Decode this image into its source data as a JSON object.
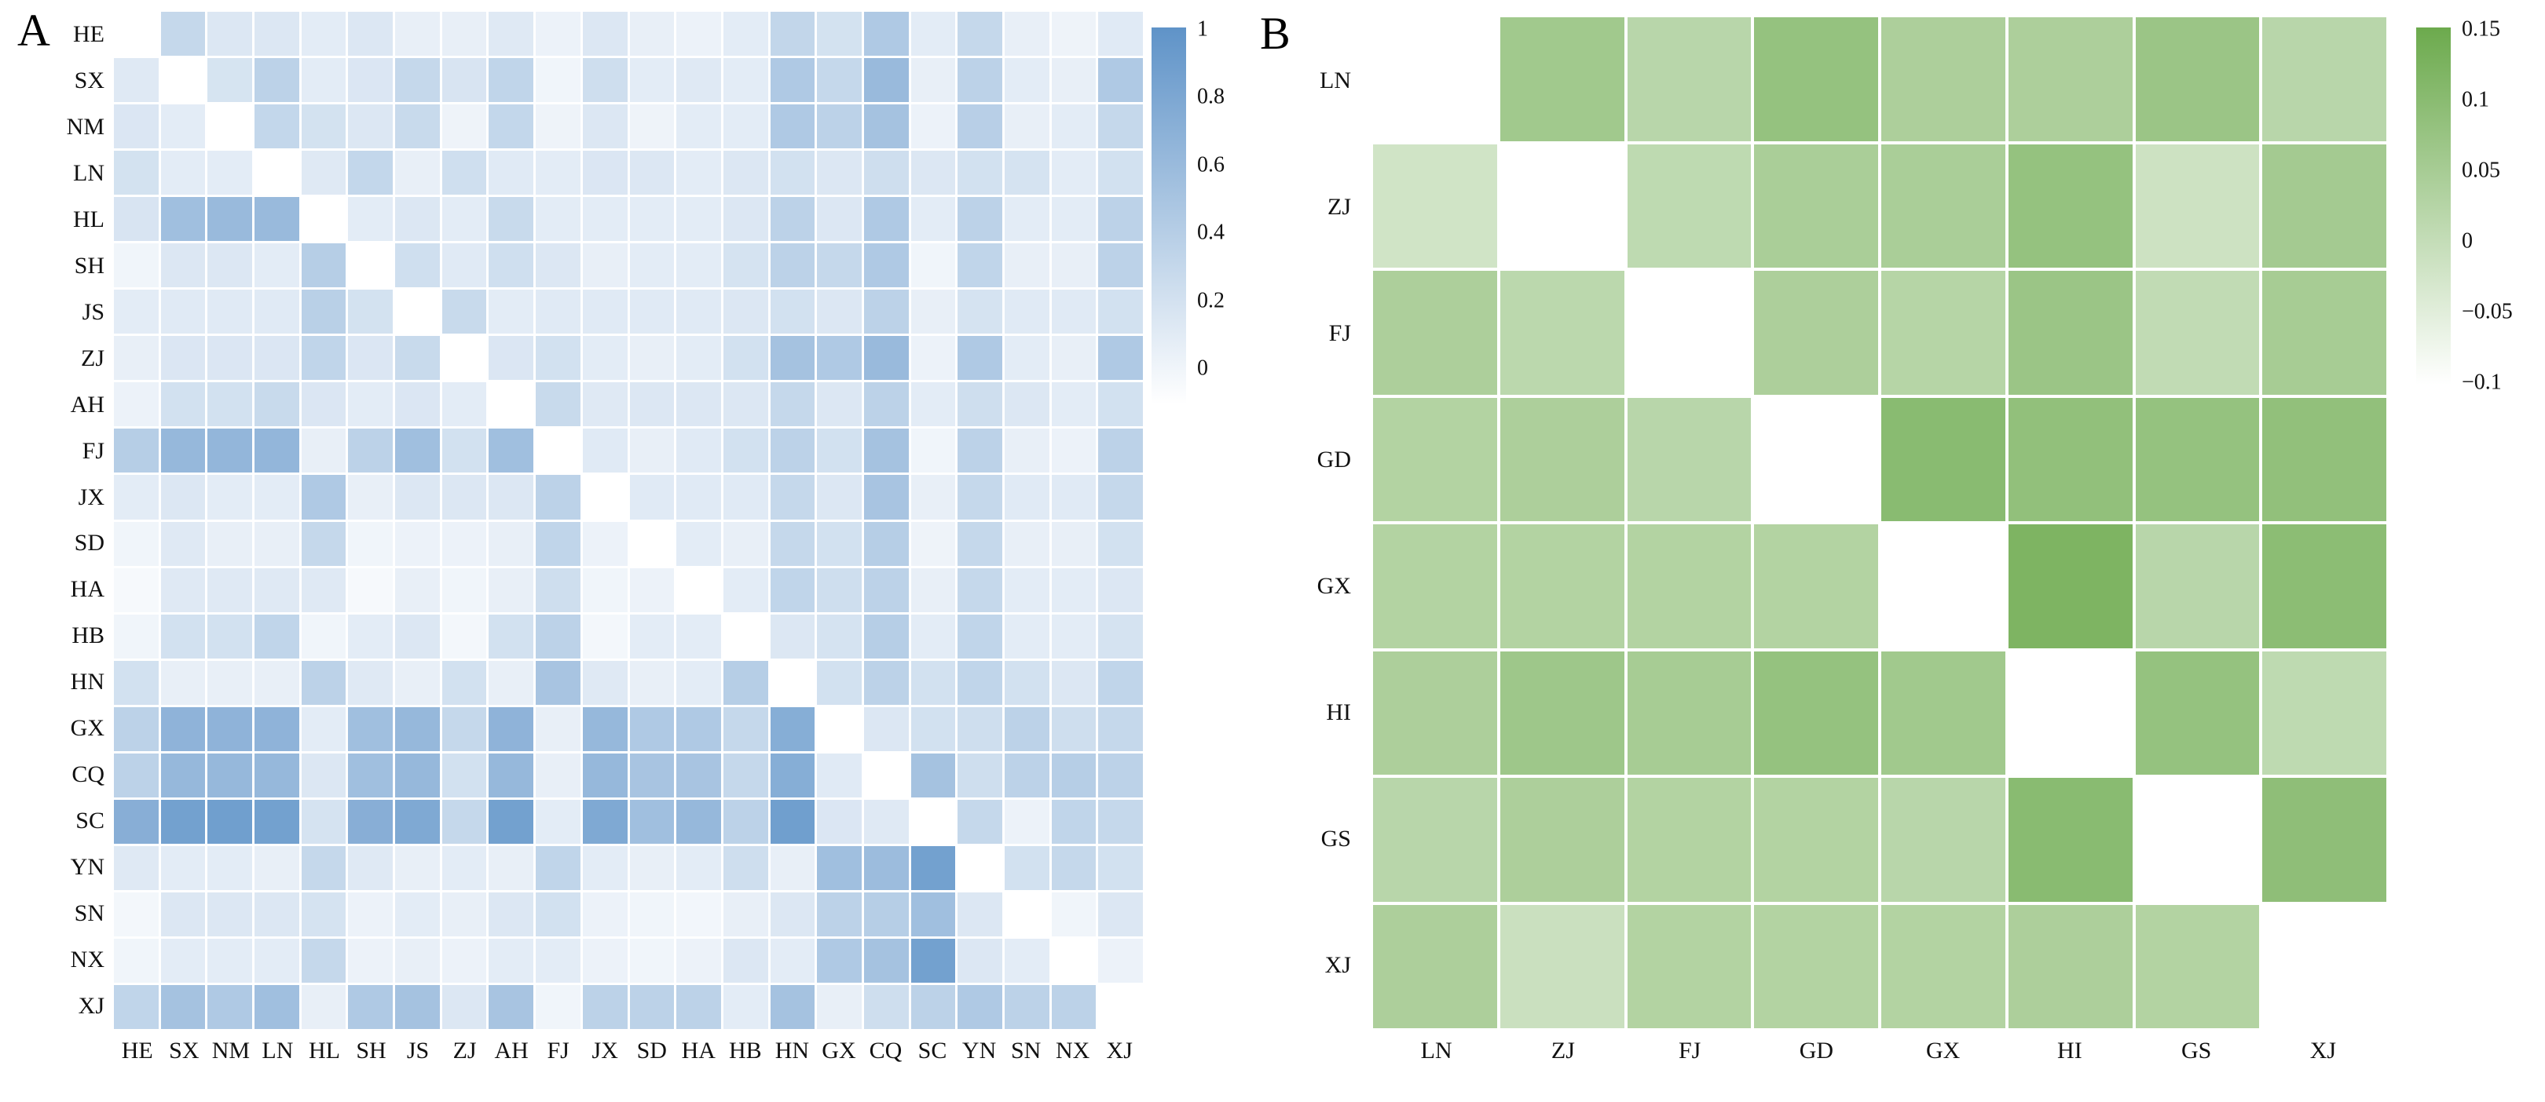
{
  "chart_data": [
    {
      "type": "heatmap",
      "panel_label": "A",
      "rows": [
        "HE",
        "SX",
        "NM",
        "LN",
        "HL",
        "SH",
        "JS",
        "ZJ",
        "AH",
        "FJ",
        "JX",
        "SD",
        "HA",
        "HB",
        "HN",
        "GX",
        "CQ",
        "SC",
        "YN",
        "SN",
        "NX",
        "XJ"
      ],
      "cols": [
        "HE",
        "SX",
        "NM",
        "LN",
        "HL",
        "SH",
        "JS",
        "ZJ",
        "AH",
        "FJ",
        "JX",
        "SD",
        "HA",
        "HB",
        "HN",
        "GX",
        "CQ",
        "SC",
        "YN",
        "SN",
        "NX",
        "XJ"
      ],
      "diagonal": "masked-white",
      "colorbar": {
        "position": "right",
        "vmin": -0.1,
        "vmax": 1.0,
        "max_color": "#5f93c8",
        "min_color": "#ffffff",
        "tick_values": [
          1,
          0.8,
          0.6,
          0.4,
          0.2,
          0
        ],
        "tick_labels": [
          "1",
          "0.8",
          "0.6",
          "0.4",
          "0.2",
          "0"
        ]
      },
      "values": [
        [
          null,
          0.3,
          0.14,
          0.14,
          0.09,
          0.14,
          0.06,
          0.06,
          0.12,
          0.03,
          0.14,
          0.06,
          0.03,
          0.09,
          0.32,
          0.2,
          0.45,
          0.09,
          0.3,
          0.06,
          0.02,
          0.11
        ],
        [
          0.12,
          null,
          0.18,
          0.36,
          0.09,
          0.15,
          0.3,
          0.17,
          0.33,
          0.0,
          0.24,
          0.09,
          0.12,
          0.09,
          0.45,
          0.3,
          0.6,
          0.06,
          0.36,
          0.09,
          0.06,
          0.45
        ],
        [
          0.15,
          0.09,
          null,
          0.31,
          0.2,
          0.14,
          0.28,
          0.02,
          0.31,
          0.02,
          0.14,
          0.02,
          0.09,
          0.09,
          0.45,
          0.36,
          0.52,
          0.03,
          0.39,
          0.06,
          0.09,
          0.3
        ],
        [
          0.2,
          0.09,
          0.09,
          null,
          0.12,
          0.31,
          0.06,
          0.23,
          0.11,
          0.09,
          0.15,
          0.14,
          0.09,
          0.14,
          0.21,
          0.14,
          0.24,
          0.14,
          0.21,
          0.19,
          0.09,
          0.21
        ],
        [
          0.17,
          0.55,
          0.6,
          0.6,
          null,
          0.09,
          0.14,
          0.09,
          0.28,
          0.09,
          0.09,
          0.09,
          0.09,
          0.14,
          0.36,
          0.14,
          0.45,
          0.09,
          0.36,
          0.09,
          0.09,
          0.36
        ],
        [
          0.0,
          0.14,
          0.14,
          0.09,
          0.4,
          null,
          0.23,
          0.11,
          0.23,
          0.14,
          0.06,
          0.09,
          0.09,
          0.19,
          0.36,
          0.3,
          0.45,
          0.0,
          0.33,
          0.06,
          0.06,
          0.36
        ],
        [
          0.09,
          0.11,
          0.11,
          0.11,
          0.38,
          0.2,
          null,
          0.28,
          0.09,
          0.11,
          0.11,
          0.11,
          0.11,
          0.14,
          0.21,
          0.14,
          0.36,
          0.06,
          0.19,
          0.11,
          0.11,
          0.21
        ],
        [
          0.06,
          0.15,
          0.15,
          0.15,
          0.33,
          0.15,
          0.28,
          null,
          0.15,
          0.21,
          0.09,
          0.06,
          0.09,
          0.21,
          0.52,
          0.45,
          0.6,
          0.03,
          0.45,
          0.09,
          0.06,
          0.45
        ],
        [
          0.03,
          0.21,
          0.21,
          0.28,
          0.15,
          0.09,
          0.15,
          0.09,
          null,
          0.28,
          0.12,
          0.14,
          0.14,
          0.14,
          0.3,
          0.14,
          0.36,
          0.09,
          0.24,
          0.14,
          0.09,
          0.21
        ],
        [
          0.4,
          0.62,
          0.64,
          0.64,
          0.06,
          0.36,
          0.55,
          0.21,
          0.55,
          null,
          0.11,
          0.06,
          0.11,
          0.21,
          0.36,
          0.21,
          0.52,
          0.0,
          0.36,
          0.06,
          0.03,
          0.36
        ],
        [
          0.09,
          0.14,
          0.09,
          0.09,
          0.45,
          0.06,
          0.14,
          0.14,
          0.14,
          0.36,
          null,
          0.11,
          0.11,
          0.11,
          0.3,
          0.14,
          0.5,
          0.06,
          0.3,
          0.11,
          0.11,
          0.3
        ],
        [
          0.0,
          0.12,
          0.06,
          0.06,
          0.3,
          0.0,
          0.03,
          0.03,
          0.06,
          0.33,
          0.03,
          null,
          0.09,
          0.06,
          0.3,
          0.21,
          0.4,
          0.02,
          0.3,
          0.06,
          0.06,
          0.21
        ],
        [
          -0.04,
          0.12,
          0.12,
          0.12,
          0.12,
          -0.04,
          0.06,
          0.0,
          0.06,
          0.24,
          0.0,
          0.03,
          null,
          0.09,
          0.33,
          0.24,
          0.36,
          0.06,
          0.3,
          0.09,
          0.09,
          0.14
        ],
        [
          0.0,
          0.21,
          0.21,
          0.33,
          0.0,
          0.09,
          0.14,
          -0.02,
          0.21,
          0.36,
          -0.02,
          0.09,
          0.09,
          null,
          0.14,
          0.19,
          0.4,
          0.09,
          0.33,
          0.09,
          0.09,
          0.19
        ],
        [
          0.21,
          0.06,
          0.06,
          0.06,
          0.36,
          0.12,
          0.06,
          0.21,
          0.06,
          0.5,
          0.12,
          0.06,
          0.09,
          0.4,
          null,
          0.21,
          0.36,
          0.21,
          0.33,
          0.21,
          0.14,
          0.33
        ],
        [
          0.36,
          0.67,
          0.67,
          0.67,
          0.09,
          0.55,
          0.62,
          0.3,
          0.67,
          0.06,
          0.62,
          0.45,
          0.45,
          0.3,
          0.73,
          null,
          0.14,
          0.21,
          0.24,
          0.36,
          0.24,
          0.3
        ],
        [
          0.36,
          0.62,
          0.62,
          0.62,
          0.14,
          0.55,
          0.62,
          0.21,
          0.62,
          0.06,
          0.62,
          0.5,
          0.5,
          0.3,
          0.73,
          0.11,
          null,
          0.52,
          0.24,
          0.36,
          0.4,
          0.36
        ],
        [
          0.72,
          0.86,
          0.88,
          0.86,
          0.19,
          0.72,
          0.78,
          0.3,
          0.86,
          0.09,
          0.78,
          0.55,
          0.62,
          0.36,
          0.88,
          0.15,
          0.12,
          null,
          0.3,
          0.03,
          0.33,
          0.3
        ],
        [
          0.12,
          0.09,
          0.09,
          0.06,
          0.3,
          0.12,
          0.06,
          0.09,
          0.06,
          0.33,
          0.09,
          0.06,
          0.09,
          0.24,
          0.06,
          0.55,
          0.58,
          0.86,
          null,
          0.21,
          0.3,
          0.21
        ],
        [
          -0.02,
          0.14,
          0.14,
          0.14,
          0.19,
          0.03,
          0.09,
          0.06,
          0.14,
          0.21,
          0.03,
          0.0,
          -0.01,
          0.06,
          0.14,
          0.36,
          0.4,
          0.55,
          0.14,
          null,
          0.0,
          0.14
        ],
        [
          0.0,
          0.09,
          0.09,
          0.09,
          0.3,
          0.03,
          0.06,
          0.03,
          0.09,
          0.09,
          0.03,
          0.0,
          0.03,
          0.14,
          0.09,
          0.45,
          0.52,
          0.86,
          0.14,
          0.09,
          null,
          0.03
        ],
        [
          0.33,
          0.52,
          0.45,
          0.55,
          0.06,
          0.45,
          0.52,
          0.14,
          0.5,
          0.0,
          0.36,
          0.36,
          0.36,
          0.09,
          0.52,
          0.06,
          0.24,
          0.36,
          0.45,
          0.36,
          0.36,
          null
        ]
      ]
    },
    {
      "type": "heatmap",
      "panel_label": "B",
      "rows": [
        "LN",
        "ZJ",
        "FJ",
        "GD",
        "GX",
        "HI",
        "GS",
        "XJ"
      ],
      "cols": [
        "LN",
        "ZJ",
        "FJ",
        "GD",
        "GX",
        "HI",
        "GS",
        "XJ"
      ],
      "diagonal": "masked-white",
      "colorbar": {
        "position": "right",
        "vmin": -0.1,
        "vmax": 0.15,
        "max_color": "#6caa4d",
        "min_color": "#ffffff",
        "tick_values": [
          0.15,
          0.1,
          0.05,
          0,
          -0.05,
          -0.1
        ],
        "tick_labels": [
          "0.15",
          "0.1",
          "0.05",
          "0",
          "−0.05",
          "−0.1"
        ]
      },
      "values": [
        [
          null,
          0.06,
          0.02,
          0.08,
          0.04,
          0.04,
          0.07,
          0.02
        ],
        [
          -0.02,
          null,
          0.01,
          0.045,
          0.045,
          0.08,
          -0.015,
          0.055
        ],
        [
          0.04,
          0.015,
          null,
          0.04,
          0.025,
          0.07,
          0.005,
          0.05
        ],
        [
          0.03,
          0.04,
          0.02,
          null,
          0.1,
          0.085,
          0.08,
          0.085
        ],
        [
          0.03,
          0.03,
          0.03,
          0.03,
          null,
          0.12,
          0.02,
          0.095
        ],
        [
          0.04,
          0.065,
          0.05,
          0.08,
          0.06,
          null,
          0.08,
          0.01
        ],
        [
          0.02,
          0.04,
          0.03,
          0.03,
          0.02,
          0.1,
          null,
          0.09
        ],
        [
          0.04,
          -0.01,
          0.03,
          0.03,
          0.03,
          0.04,
          0.03,
          null
        ]
      ]
    }
  ]
}
